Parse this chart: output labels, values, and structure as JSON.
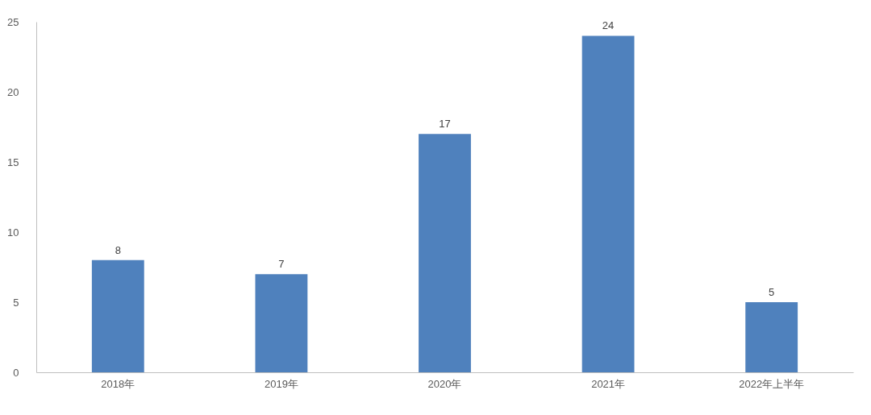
{
  "chart_data": {
    "type": "bar",
    "categories": [
      "2018年",
      "2019年",
      "2020年",
      "2021年",
      "2022年上半年"
    ],
    "values": [
      8,
      7,
      17,
      24,
      5
    ],
    "color": "#4f81bd",
    "ylim": [
      0,
      25
    ],
    "yticks": [
      0,
      5,
      10,
      15,
      20,
      25
    ],
    "grid": false,
    "data_labels": true
  }
}
